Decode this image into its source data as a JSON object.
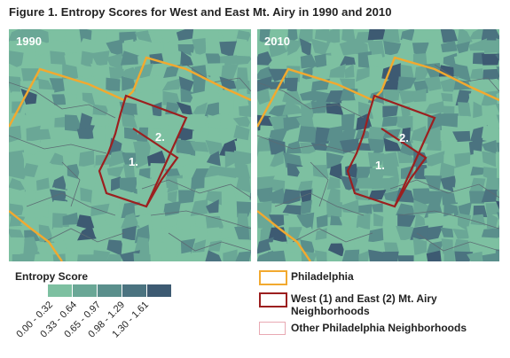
{
  "figure": {
    "title": "Figure 1. Entropy Scores for West and East Mt. Airy in 1990 and 2010"
  },
  "panels": [
    {
      "year_label": "1990",
      "hood1_label": "1.",
      "hood2_label": "2."
    },
    {
      "year_label": "2010",
      "hood1_label": "1.",
      "hood2_label": "2."
    }
  ],
  "legend": {
    "title": "Entropy Score",
    "bins": [
      {
        "label": "0.00 - 0.32",
        "color": "#7dc0a1"
      },
      {
        "label": "0.33 - 0.64",
        "color": "#6aa796"
      },
      {
        "label": "0.65 - 0.97",
        "color": "#5a8f8c"
      },
      {
        "label": "0.98 - 1.29",
        "color": "#4b7380"
      },
      {
        "label": "1.30 - 1.61",
        "color": "#3d5a72"
      }
    ],
    "boundaries": [
      {
        "label": "Philadelphia",
        "color": "#f2a92f"
      },
      {
        "label": "West (1) and East (2) Mt. Airy Neighborhoods",
        "color": "#9c1f1f"
      },
      {
        "label": "Other Philadelphia Neighborhoods",
        "color": "#e8a9b3"
      }
    ]
  }
}
